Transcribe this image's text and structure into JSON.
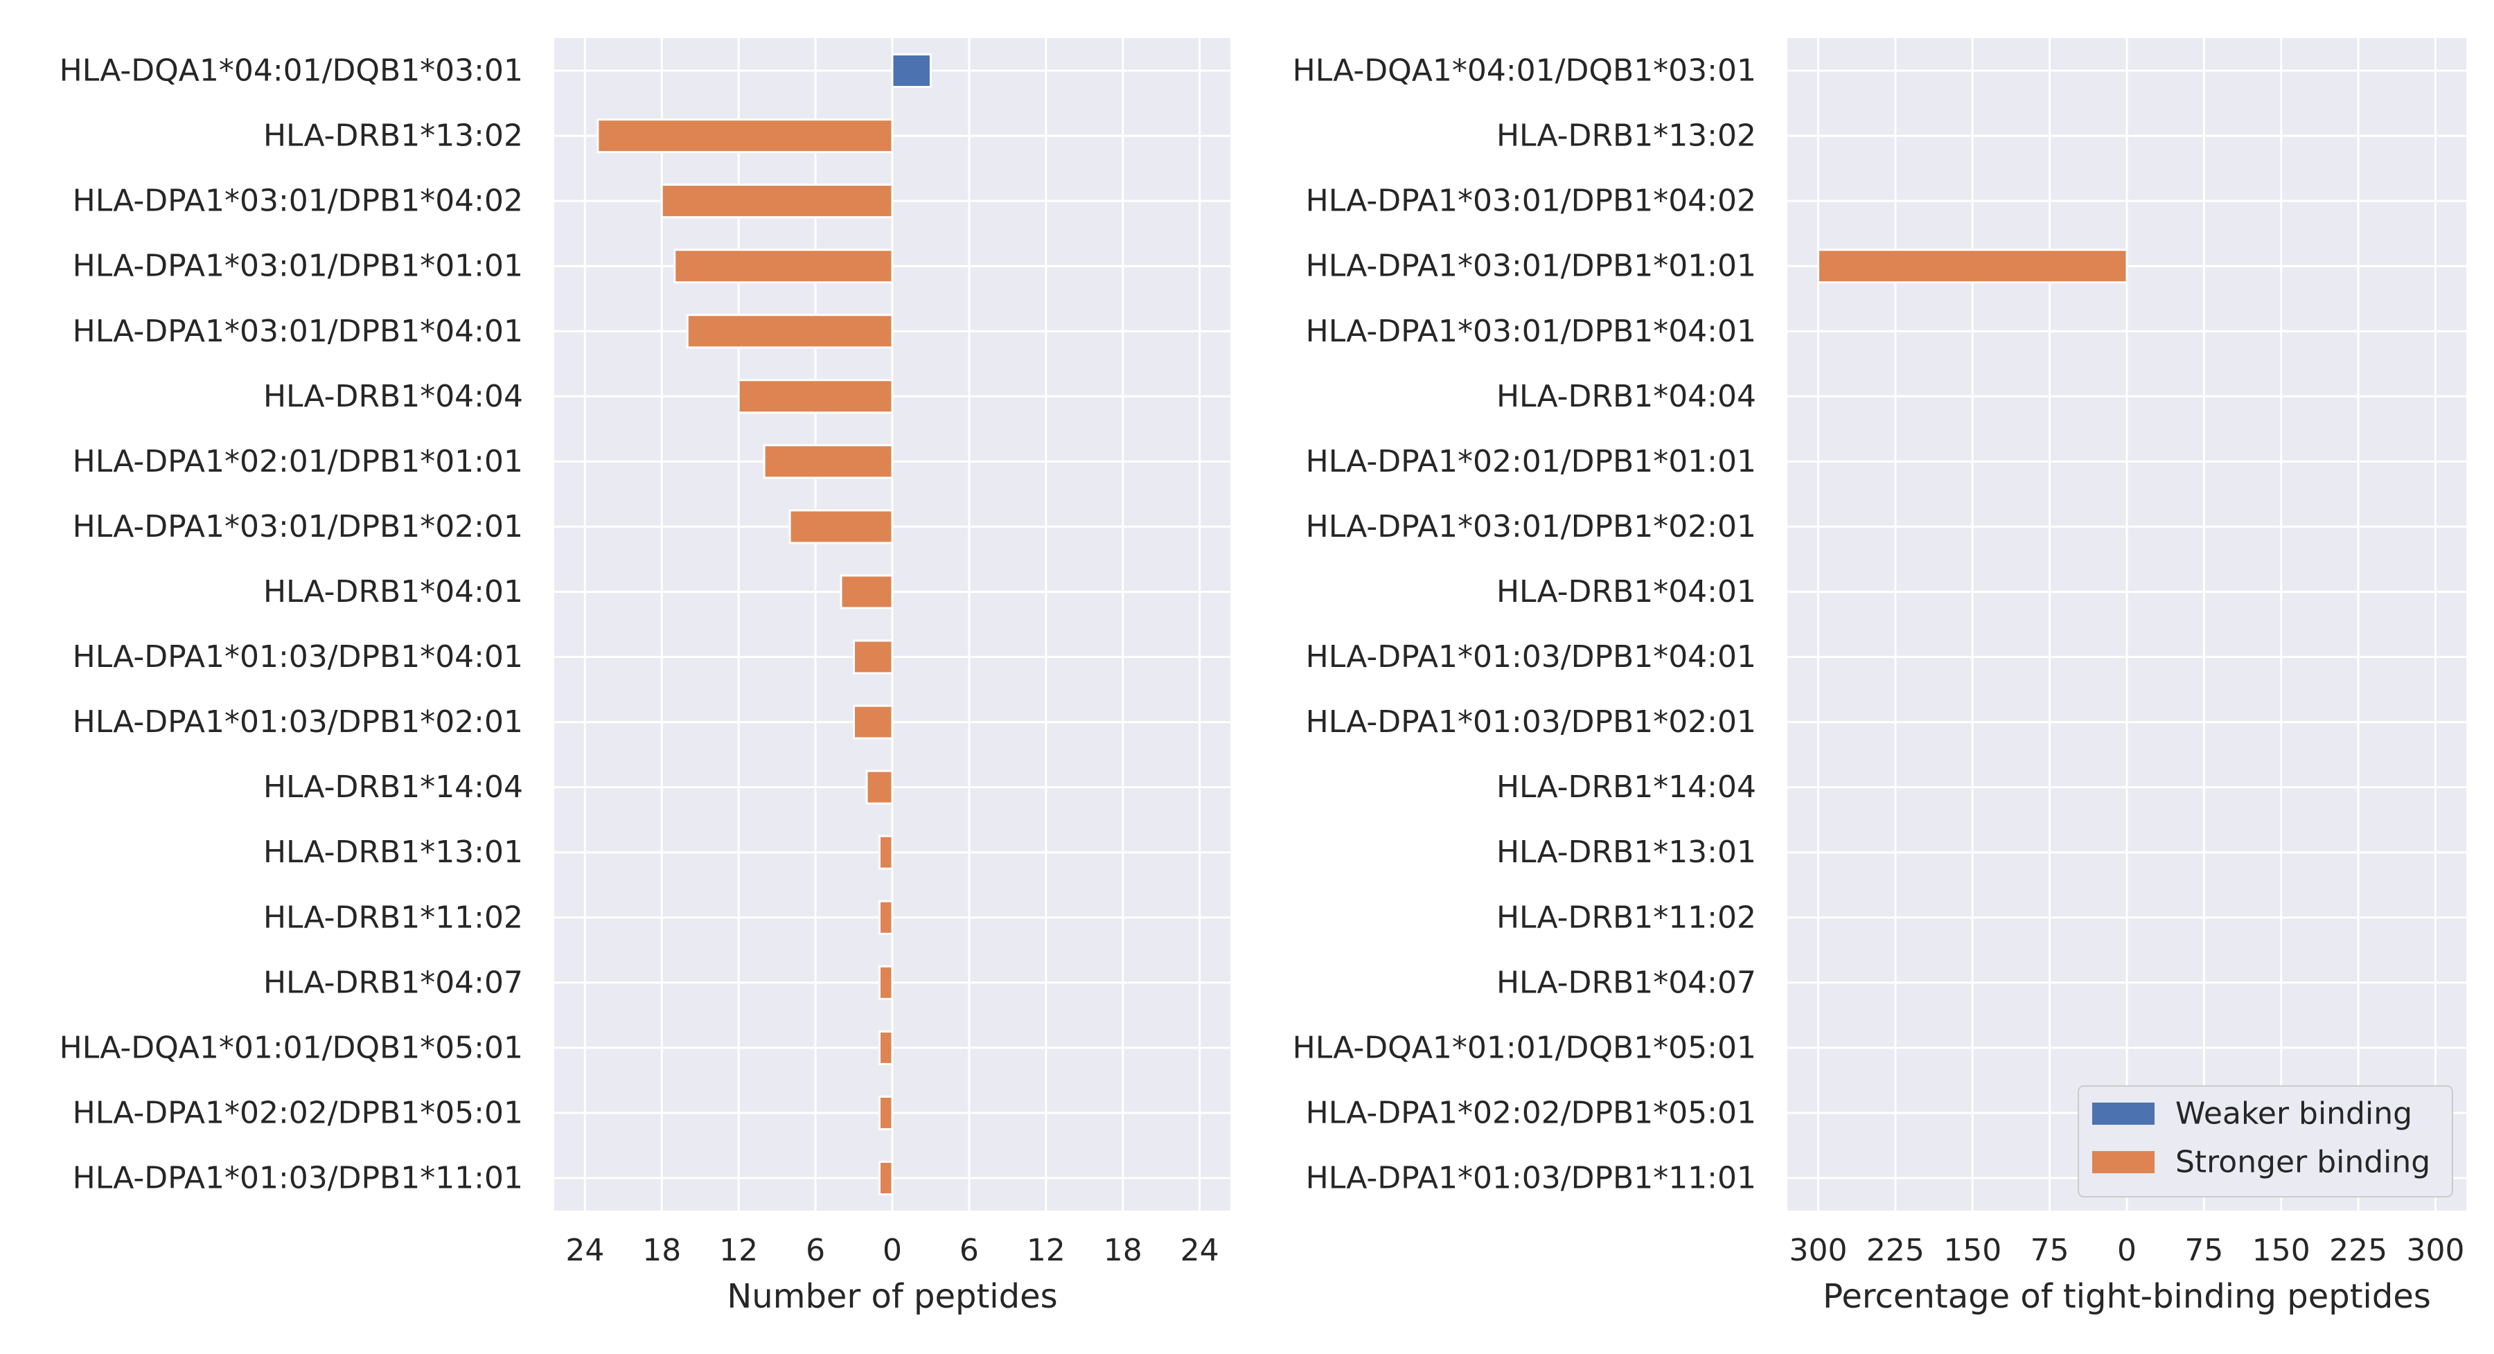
{
  "colors": {
    "weaker": "#4c72b0",
    "stronger": "#dd8452",
    "panel_bg": "#eaeaf2",
    "grid": "#ffffff",
    "text": "#262626"
  },
  "chart_data": [
    {
      "type": "bar",
      "orientation": "horizontal",
      "layout": "diverging",
      "xlabel": "Number of peptides",
      "ylabel": "",
      "xlim": [
        -26.4,
        26.4
      ],
      "xticks": [
        -24,
        -18,
        -12,
        -6,
        0,
        6,
        12,
        18,
        24
      ],
      "xtick_labels": [
        "24",
        "18",
        "12",
        "6",
        "0",
        "6",
        "12",
        "18",
        "24"
      ],
      "grid": true,
      "categories": [
        "HLA-DQA1*04:01/DQB1*03:01",
        "HLA-DRB1*13:02",
        "HLA-DPA1*03:01/DPB1*04:02",
        "HLA-DPA1*03:01/DPB1*01:01",
        "HLA-DPA1*03:01/DPB1*04:01",
        "HLA-DRB1*04:04",
        "HLA-DPA1*02:01/DPB1*01:01",
        "HLA-DPA1*03:01/DPB1*02:01",
        "HLA-DRB1*04:01",
        "HLA-DPA1*01:03/DPB1*04:01",
        "HLA-DPA1*01:03/DPB1*02:01",
        "HLA-DRB1*14:04",
        "HLA-DRB1*13:01",
        "HLA-DRB1*11:02",
        "HLA-DRB1*04:07",
        "HLA-DQA1*01:01/DQB1*05:01",
        "HLA-DPA1*02:02/DPB1*05:01",
        "HLA-DPA1*01:03/DPB1*11:01"
      ],
      "series": [
        {
          "name": "Weaker binding",
          "direction": "right",
          "values": [
            3,
            0,
            0,
            0,
            0,
            0,
            0,
            0,
            0,
            0,
            0,
            0,
            0,
            0,
            0,
            0,
            0,
            0
          ]
        },
        {
          "name": "Stronger binding",
          "direction": "left",
          "values": [
            0,
            23,
            18,
            17,
            16,
            12,
            10,
            8,
            4,
            3,
            3,
            2,
            1,
            1,
            1,
            1,
            1,
            1
          ]
        }
      ]
    },
    {
      "type": "bar",
      "orientation": "horizontal",
      "layout": "diverging",
      "xlabel": "Percentage of tight-binding peptides",
      "ylabel": "",
      "xlim": [
        -330,
        330
      ],
      "xticks": [
        -300,
        -225,
        -150,
        -75,
        0,
        75,
        150,
        225,
        300
      ],
      "xtick_labels": [
        "300",
        "225",
        "150",
        "75",
        "0",
        "75",
        "150",
        "225",
        "300"
      ],
      "grid": true,
      "legend": {
        "position": "bottom-right",
        "entries": [
          "Weaker binding",
          "Stronger binding"
        ]
      },
      "categories": [
        "HLA-DQA1*04:01/DQB1*03:01",
        "HLA-DRB1*13:02",
        "HLA-DPA1*03:01/DPB1*04:02",
        "HLA-DPA1*03:01/DPB1*01:01",
        "HLA-DPA1*03:01/DPB1*04:01",
        "HLA-DRB1*04:04",
        "HLA-DPA1*02:01/DPB1*01:01",
        "HLA-DPA1*03:01/DPB1*02:01",
        "HLA-DRB1*04:01",
        "HLA-DPA1*01:03/DPB1*04:01",
        "HLA-DPA1*01:03/DPB1*02:01",
        "HLA-DRB1*14:04",
        "HLA-DRB1*13:01",
        "HLA-DRB1*11:02",
        "HLA-DRB1*04:07",
        "HLA-DQA1*01:01/DQB1*05:01",
        "HLA-DPA1*02:02/DPB1*05:01",
        "HLA-DPA1*01:03/DPB1*11:01"
      ],
      "series": [
        {
          "name": "Weaker binding",
          "direction": "right",
          "values": [
            0,
            0,
            0,
            0,
            0,
            0,
            0,
            0,
            0,
            0,
            0,
            0,
            0,
            0,
            0,
            0,
            0,
            0
          ]
        },
        {
          "name": "Stronger binding",
          "direction": "left",
          "values": [
            0,
            0,
            0,
            300,
            0,
            0,
            0,
            0,
            0,
            0,
            0,
            0,
            0,
            0,
            0,
            0,
            0,
            0
          ]
        }
      ]
    }
  ]
}
